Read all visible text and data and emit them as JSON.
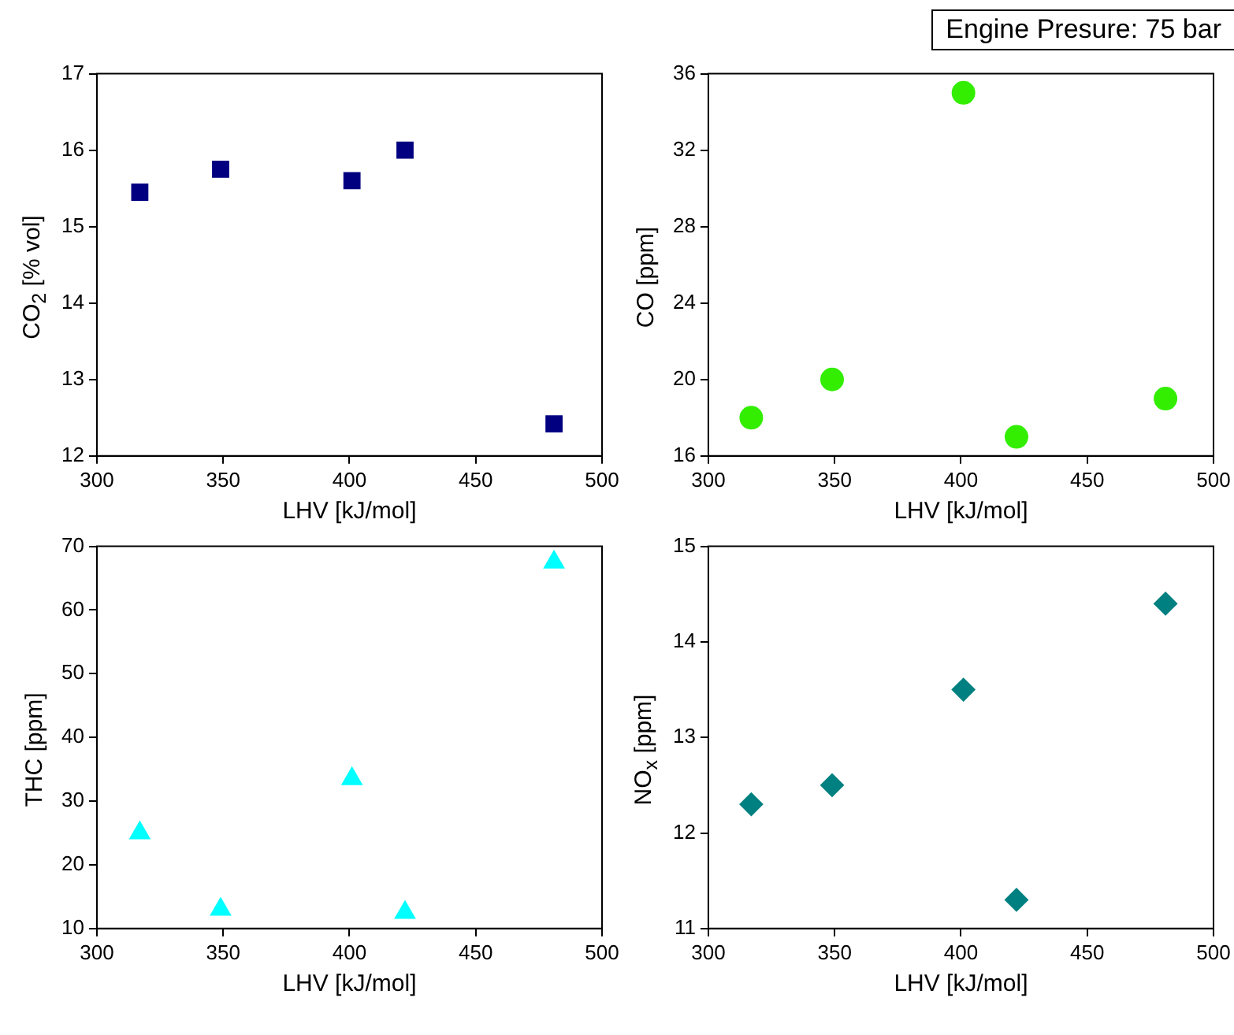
{
  "chart_data": [
    {
      "type": "scatter",
      "x": [
        317,
        349,
        401,
        422,
        481
      ],
      "values": [
        15.45,
        15.75,
        15.6,
        16.0,
        12.42
      ],
      "color": "#000080",
      "marker": "square",
      "xlabel": "LHV [kJ/mol]",
      "ylabel": "CO$_{2}$ [% vol]",
      "xlim": [
        300,
        500
      ],
      "xticks": [
        300,
        350,
        400,
        450,
        500
      ],
      "ylim": [
        12,
        17
      ],
      "yticks": [
        12,
        13,
        14,
        15,
        16,
        17
      ]
    },
    {
      "type": "scatter",
      "x": [
        317,
        349,
        401,
        422,
        481
      ],
      "values": [
        18,
        20,
        35,
        17,
        19
      ],
      "color": "#33ee00",
      "marker": "circle",
      "xlabel": "LHV [kJ/mol]",
      "ylabel": "CO [ppm]",
      "xlim": [
        300,
        500
      ],
      "xticks": [
        300,
        350,
        400,
        450,
        500
      ],
      "ylim": [
        16,
        36
      ],
      "yticks": [
        16,
        20,
        24,
        28,
        32,
        36
      ],
      "annotations": [
        "Engine Presure: 75 bar"
      ]
    },
    {
      "type": "scatter",
      "x": [
        317,
        349,
        401,
        422,
        481
      ],
      "values": [
        25,
        13,
        33.5,
        12.5,
        67.5
      ],
      "color": "#00ffff",
      "marker": "triangle",
      "xlabel": "LHV [kJ/mol]",
      "ylabel": "THC [ppm]",
      "xlim": [
        300,
        500
      ],
      "xticks": [
        300,
        350,
        400,
        450,
        500
      ],
      "ylim": [
        10,
        70
      ],
      "yticks": [
        10,
        20,
        30,
        40,
        50,
        60,
        70
      ]
    },
    {
      "type": "scatter",
      "x": [
        317,
        349,
        401,
        422,
        481
      ],
      "values": [
        12.3,
        12.5,
        13.5,
        11.3,
        14.4
      ],
      "color": "#008080",
      "marker": "diamond",
      "xlabel": "LHV [kJ/mol]",
      "ylabel": "NO$_{x}$ [ppm]",
      "xlim": [
        300,
        500
      ],
      "xticks": [
        300,
        350,
        400,
        450,
        500
      ],
      "ylim": [
        11,
        15
      ],
      "yticks": [
        11,
        12,
        13,
        14,
        15
      ]
    }
  ]
}
